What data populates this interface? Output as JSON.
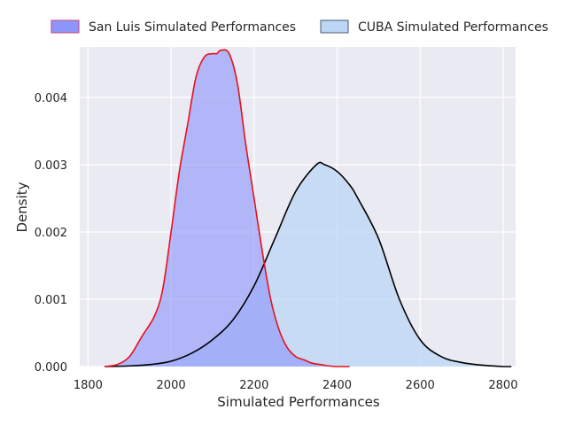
{
  "chart_data": {
    "type": "area",
    "xlabel": "Simulated Performances",
    "ylabel": "Density",
    "xlim": [
      1780,
      2830
    ],
    "ylim": [
      0,
      0.00475
    ],
    "xticks": [
      1800,
      2000,
      2200,
      2400,
      2600,
      2800
    ],
    "yticks": [
      0.0,
      0.001,
      0.002,
      0.003,
      0.004
    ],
    "ytick_labels": [
      "0.000",
      "0.001",
      "0.002",
      "0.003",
      "0.004"
    ],
    "grid": true,
    "legend_position": "top",
    "background": "#eaeaf2",
    "series": [
      {
        "name": "San Luis Simulated Performances",
        "fill": "#8c96fa",
        "line": "#e8101e",
        "x": [
          1840,
          1870,
          1900,
          1930,
          1960,
          1980,
          2000,
          2020,
          2040,
          2060,
          2080,
          2100,
          2110,
          2120,
          2140,
          2160,
          2180,
          2200,
          2220,
          2240,
          2260,
          2280,
          2300,
          2320,
          2340,
          2360,
          2380,
          2400,
          2430
        ],
        "values": [
          0.0,
          3e-05,
          0.00015,
          0.00045,
          0.00075,
          0.00115,
          0.002,
          0.0029,
          0.0036,
          0.0043,
          0.0046,
          0.00465,
          0.00465,
          0.0047,
          0.00465,
          0.0042,
          0.0033,
          0.0025,
          0.0017,
          0.001,
          0.00055,
          0.00028,
          0.00015,
          0.0001,
          5e-05,
          3e-05,
          1e-05,
          0.0,
          0.0
        ]
      },
      {
        "name": "CUBA Simulated Performances",
        "fill": "#bcd6f5",
        "line": "#000000",
        "x": [
          1840,
          1900,
          1950,
          2000,
          2050,
          2100,
          2150,
          2200,
          2250,
          2300,
          2350,
          2370,
          2400,
          2430,
          2450,
          2500,
          2550,
          2600,
          2650,
          2700,
          2750,
          2800,
          2820
        ],
        "values": [
          0.0,
          1e-05,
          3e-05,
          8e-05,
          0.0002,
          0.0004,
          0.0007,
          0.0012,
          0.0019,
          0.0026,
          0.003,
          0.003,
          0.0029,
          0.0027,
          0.0025,
          0.0019,
          0.001,
          0.0004,
          0.00015,
          6e-05,
          2e-05,
          0.0,
          0.0
        ]
      }
    ]
  }
}
